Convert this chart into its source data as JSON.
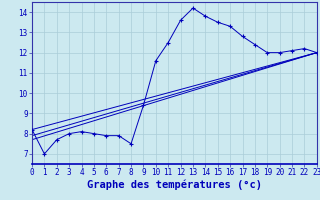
{
  "xlabel": "Graphe des températures (°c)",
  "background_color": "#cce9f0",
  "grid_color": "#aacdd8",
  "line_color": "#0000bb",
  "axis_color": "#3333aa",
  "x_min": 0,
  "x_max": 23,
  "y_min": 6.5,
  "y_max": 14.5,
  "series": [
    {
      "x": [
        0,
        1,
        2,
        3,
        4,
        5,
        6,
        7,
        8,
        9,
        10,
        11,
        12,
        13,
        14,
        15,
        16,
        17,
        18,
        19,
        20,
        21,
        22,
        23
      ],
      "y": [
        8.2,
        7.0,
        7.7,
        8.0,
        8.1,
        8.0,
        7.9,
        7.9,
        7.5,
        9.4,
        11.6,
        12.5,
        13.6,
        14.2,
        13.8,
        13.5,
        13.3,
        12.8,
        12.4,
        12.0,
        12.0,
        12.1,
        12.2,
        12.0
      ],
      "has_markers": true
    },
    {
      "x": [
        0,
        23
      ],
      "y": [
        8.2,
        12.0
      ],
      "has_markers": false
    },
    {
      "x": [
        0,
        23
      ],
      "y": [
        7.9,
        12.0
      ],
      "has_markers": false
    },
    {
      "x": [
        0,
        23
      ],
      "y": [
        7.7,
        12.0
      ],
      "has_markers": false
    }
  ],
  "yticks": [
    7,
    8,
    9,
    10,
    11,
    12,
    13,
    14
  ],
  "xticks": [
    0,
    1,
    2,
    3,
    4,
    5,
    6,
    7,
    8,
    9,
    10,
    11,
    12,
    13,
    14,
    15,
    16,
    17,
    18,
    19,
    20,
    21,
    22,
    23
  ],
  "xtick_labels": [
    "0",
    "1",
    "2",
    "3",
    "4",
    "5",
    "6",
    "7",
    "8",
    "9",
    "10",
    "11",
    "12",
    "13",
    "14",
    "15",
    "16",
    "17",
    "18",
    "19",
    "20",
    "21",
    "22",
    "23"
  ],
  "tick_fontsize": 5.5,
  "xlabel_fontsize": 7.5,
  "xlabel_fontweight": "bold"
}
